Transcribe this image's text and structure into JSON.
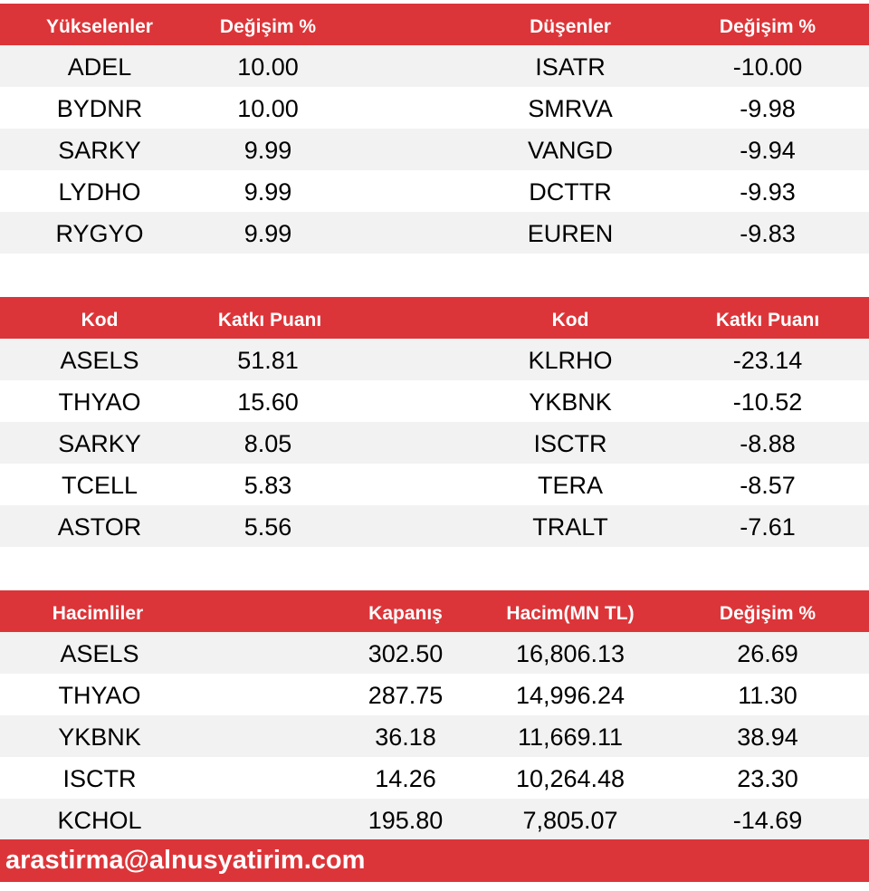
{
  "gainers_losers": {
    "headers": [
      "Yükselenler",
      "Değişim %",
      "Düşenler",
      "Değişim %"
    ],
    "rows": [
      [
        "ADEL",
        "10.00",
        "ISATR",
        "-10.00"
      ],
      [
        "BYDNR",
        "10.00",
        "SMRVA",
        "-9.98"
      ],
      [
        "SARKY",
        "9.99",
        "VANGD",
        "-9.94"
      ],
      [
        "LYDHO",
        "9.99",
        "DCTTR",
        "-9.93"
      ],
      [
        "RYGYO",
        "9.99",
        "EUREN",
        "-9.83"
      ]
    ]
  },
  "contribution": {
    "headers": [
      "Kod",
      "Katkı Puanı",
      "Kod",
      "Katkı Puanı"
    ],
    "rows": [
      [
        "ASELS",
        "51.81",
        "KLRHO",
        "-23.14"
      ],
      [
        "THYAO",
        "15.60",
        "YKBNK",
        "-10.52"
      ],
      [
        "SARKY",
        "8.05",
        "ISCTR",
        "-8.88"
      ],
      [
        "TCELL",
        "5.83",
        "TERA",
        "-8.57"
      ],
      [
        "ASTOR",
        "5.56",
        "TRALT",
        "-7.61"
      ]
    ]
  },
  "volume": {
    "headers": [
      "Hacimliler",
      "Kapanış",
      "Hacim(MN TL)",
      "Değişim %"
    ],
    "rows": [
      [
        "ASELS",
        "302.50",
        "16,806.13",
        "26.69"
      ],
      [
        "THYAO",
        "287.75",
        "14,996.24",
        "11.30"
      ],
      [
        "YKBNK",
        "36.18",
        "11,669.11",
        "38.94"
      ],
      [
        "ISCTR",
        "14.26",
        "10,264.48",
        "23.30"
      ],
      [
        "KCHOL",
        "195.80",
        "7,805.07",
        "-14.69"
      ]
    ]
  },
  "footer": {
    "email": "arastirma@alnusyatirim.com"
  },
  "colors": {
    "header_bg": "#dc3539",
    "alt_row_bg": "#f2f2f2"
  }
}
